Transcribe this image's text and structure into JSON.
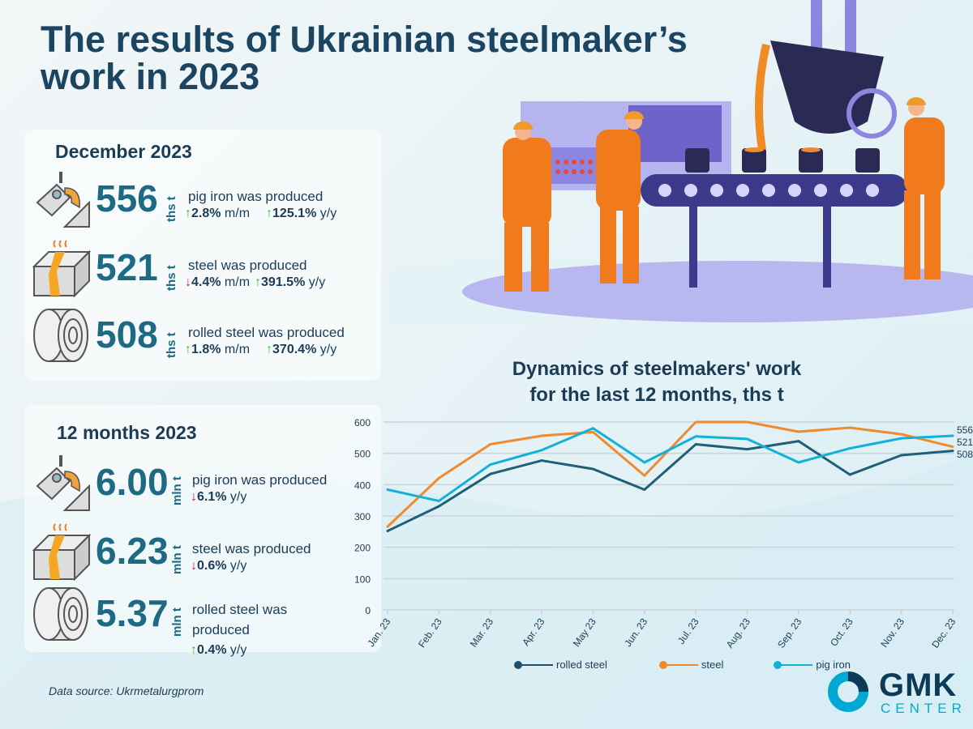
{
  "title": "The results of Ukrainian steelmaker’s work in 2023",
  "december": {
    "heading": "December 2023",
    "items": [
      {
        "icon": "ladle-icon",
        "value": "556",
        "unit": "ths t",
        "label": "pig iron was produced",
        "mm_dir": "up",
        "mm": "2.8%",
        "mm_suffix": "m/m",
        "yy_dir": "up",
        "yy": "125.1%",
        "yy_suffix": "y/y"
      },
      {
        "icon": "steel-billet-icon",
        "value": "521",
        "unit": "ths t",
        "label": "steel was produced",
        "mm_dir": "down",
        "mm": "4.4%",
        "mm_suffix": "m/m",
        "yy_dir": "up",
        "yy": "391.5%",
        "yy_suffix": "y/y"
      },
      {
        "icon": "steel-coil-icon",
        "value": "508",
        "unit": "ths t",
        "label": "rolled steel was produced",
        "mm_dir": "up",
        "mm": "1.8%",
        "mm_suffix": "m/m",
        "yy_dir": "up",
        "yy": "370.4%",
        "yy_suffix": "y/y"
      }
    ]
  },
  "year": {
    "heading": "12 months 2023",
    "items": [
      {
        "icon": "ladle-icon",
        "value": "6.00",
        "unit": "mln t",
        "label": "pig iron was produced",
        "yy_dir": "down",
        "yy": "6.1%",
        "yy_suffix": "y/y"
      },
      {
        "icon": "steel-billet-icon",
        "value": "6.23",
        "unit": "mln t",
        "label": "steel was produced",
        "yy_dir": "down",
        "yy": "0.6%",
        "yy_suffix": "y/y"
      },
      {
        "icon": "steel-coil-icon",
        "value": "5.37",
        "unit": "mln t",
        "label": "rolled steel was produced",
        "yy_dir": "up",
        "yy": "0.4%",
        "yy_suffix": "y/y"
      }
    ]
  },
  "source": "Data source: Ukrmetalurgprom",
  "logo": {
    "main": "GMK",
    "sub": "CENTER"
  },
  "colors": {
    "rolled_steel": "#1f5f78",
    "steel": "#ef8a2f",
    "pig_iron": "#14b1d6",
    "up": "#3cc52a",
    "down": "#c8213c",
    "value": "#1e6a85"
  },
  "chart_data": {
    "type": "line",
    "title": "Dynamics of steelmakers' work for the last 12 months, ths t",
    "title_lines": [
      "Dynamics of steelmakers' work",
      "for the last 12 months, ths t"
    ],
    "categories": [
      "Jan. 23",
      "Feb. 23",
      "Mar. 23",
      "Apr. 23",
      "May 23",
      "Jun. 23",
      "Jul. 23",
      "Aug. 23",
      "Sep. 23",
      "Oct. 23",
      "Nov. 23",
      "Dec. 23"
    ],
    "ylim": [
      0,
      600
    ],
    "yticks": [
      0,
      100,
      200,
      300,
      400,
      500,
      600
    ],
    "grid": true,
    "legend_position": "bottom",
    "series": [
      {
        "name": "rolled steel",
        "color": "#1f5f78",
        "values": [
          252,
          331,
          434,
          477,
          450,
          384,
          529,
          513,
          539,
          432,
          494,
          508
        ],
        "end_label": "508"
      },
      {
        "name": "steel",
        "color": "#ef8a2f",
        "values": [
          266,
          421,
          529,
          556,
          568,
          429,
          600,
          600,
          569,
          582,
          561,
          521
        ],
        "end_label": "521"
      },
      {
        "name": "pig iron",
        "color": "#14b1d6",
        "values": [
          384,
          348,
          464,
          510,
          580,
          471,
          554,
          546,
          471,
          516,
          548,
          556
        ],
        "end_label": "556"
      }
    ]
  }
}
